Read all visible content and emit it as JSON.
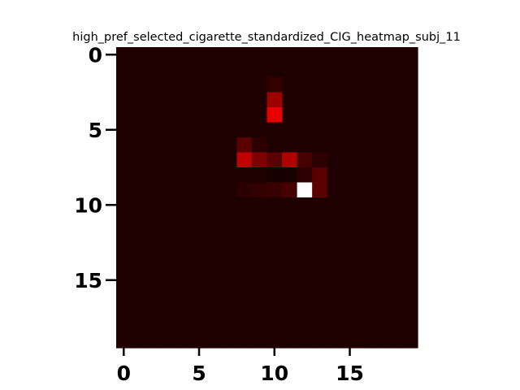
{
  "chart_data": {
    "type": "heatmap",
    "title": "high_pref_selected_cigarette_standardized_CIG_heatmap_subj_11",
    "xlabel": "",
    "ylabel": "",
    "rows": 20,
    "cols": 20,
    "xlim": [
      -0.5,
      19.5
    ],
    "ylim": [
      19.5,
      -0.5
    ],
    "x_ticks": [
      0,
      5,
      10,
      15
    ],
    "y_ticks": [
      0,
      5,
      10,
      15
    ],
    "x_tick_labels": [
      "0",
      "5",
      "10",
      "15"
    ],
    "y_tick_labels": [
      "0",
      "5",
      "10",
      "15"
    ],
    "colormap": "hot",
    "background_value": 0.03,
    "cells": [
      {
        "row": 2,
        "col": 10,
        "value": 0.06
      },
      {
        "row": 3,
        "col": 10,
        "value": 0.22
      },
      {
        "row": 4,
        "col": 10,
        "value": 0.33
      },
      {
        "row": 6,
        "col": 8,
        "value": 0.12
      },
      {
        "row": 6,
        "col": 9,
        "value": 0.05
      },
      {
        "row": 7,
        "col": 8,
        "value": 0.27
      },
      {
        "row": 7,
        "col": 9,
        "value": 0.17
      },
      {
        "row": 7,
        "col": 10,
        "value": 0.12
      },
      {
        "row": 7,
        "col": 11,
        "value": 0.25
      },
      {
        "row": 7,
        "col": 12,
        "value": 0.09
      },
      {
        "row": 7,
        "col": 13,
        "value": 0.05
      },
      {
        "row": 8,
        "col": 10,
        "value": 0.02
      },
      {
        "row": 8,
        "col": 11,
        "value": 0.02
      },
      {
        "row": 8,
        "col": 13,
        "value": 0.12
      },
      {
        "row": 9,
        "col": 8,
        "value": 0.05
      },
      {
        "row": 9,
        "col": 9,
        "value": 0.06
      },
      {
        "row": 9,
        "col": 10,
        "value": 0.07
      },
      {
        "row": 9,
        "col": 11,
        "value": 0.09
      },
      {
        "row": 9,
        "col": 12,
        "value": 1.0
      },
      {
        "row": 9,
        "col": 13,
        "value": 0.12
      },
      {
        "row": 8,
        "col": 12,
        "value": 0.05
      }
    ]
  }
}
